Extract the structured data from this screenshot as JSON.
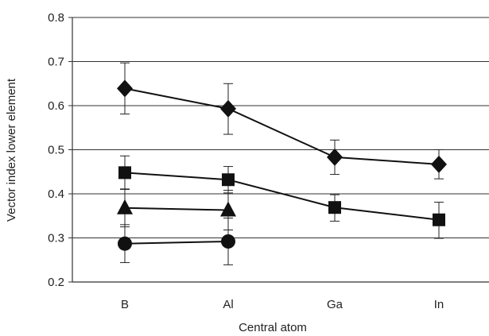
{
  "chart_data": {
    "type": "line",
    "title": "",
    "xlabel": "Central atom",
    "ylabel": "Vector index lower element",
    "categories": [
      "B",
      "Al",
      "Ga",
      "In"
    ],
    "ylim": [
      0.2,
      0.8
    ],
    "yticks": [
      0.2,
      0.3,
      0.4,
      0.5,
      0.6,
      0.7,
      0.8
    ],
    "ytick_labels": [
      "0.2",
      "0.3",
      "0.4",
      "0.5",
      "0.6",
      "0.7",
      "0.8"
    ],
    "grid": true,
    "legend": "none",
    "series": [
      {
        "marker": "diamond",
        "values": [
          0.639,
          0.593,
          0.483,
          0.467
        ],
        "err_low": [
          0.058,
          0.058,
          0.039,
          0.033
        ],
        "err_high": [
          0.058,
          0.057,
          0.039,
          0.033
        ]
      },
      {
        "marker": "square",
        "values": [
          0.448,
          0.432,
          0.369,
          0.341
        ],
        "err_low": [
          0.038,
          0.03,
          0.031,
          0.042
        ],
        "err_high": [
          0.038,
          0.03,
          0.029,
          0.04
        ]
      },
      {
        "marker": "triangle",
        "values": [
          0.368,
          0.363,
          null,
          null
        ],
        "err_low": [
          0.043,
          0.045,
          null,
          null
        ],
        "err_high": [
          0.043,
          0.045,
          null,
          null
        ]
      },
      {
        "marker": "circle",
        "values": [
          0.287,
          0.292,
          null,
          null
        ],
        "err_low": [
          0.043,
          0.053,
          null,
          null
        ],
        "err_high": [
          0.043,
          0.053,
          null,
          null
        ]
      }
    ]
  }
}
